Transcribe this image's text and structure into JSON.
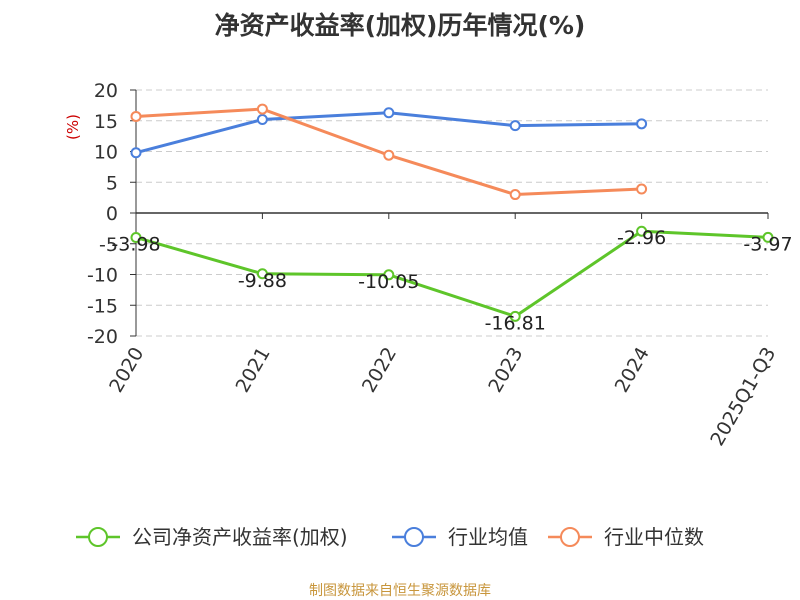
{
  "chart_data": {
    "type": "line",
    "title": "净资产收益率(加权)历年情况(%)",
    "ylabel": "(%)",
    "categories": [
      "2020",
      "2021",
      "2022",
      "2023",
      "2024",
      "2025Q1-Q3"
    ],
    "ylim": [
      -20,
      20
    ],
    "yticks": [
      20,
      15,
      10,
      5,
      0,
      -5,
      -10,
      -15,
      -20
    ],
    "grid": true,
    "legend_position": "bottom",
    "series": [
      {
        "name": "公司净资产收益率(加权)",
        "color": "#5ec52a",
        "values": [
          -3.98,
          -9.88,
          -10.05,
          -16.81,
          -2.96,
          -3.97
        ],
        "labels": [
          "-3.98",
          "-9.88",
          "-10.05",
          "-16.81",
          "-2.96",
          "-3.97"
        ]
      },
      {
        "name": "行业均值",
        "color": "#4a7fdc",
        "values": [
          9.8,
          15.2,
          16.3,
          14.2,
          14.5,
          null
        ]
      },
      {
        "name": "行业中位数",
        "color": "#f58a5a",
        "values": [
          15.7,
          16.9,
          9.4,
          3.0,
          3.9,
          null
        ]
      }
    ]
  },
  "source": "制图数据来自恒生聚源数据库",
  "colors": {
    "unit": "#cc0000",
    "source": "#c8963c",
    "axis": "#333333"
  }
}
